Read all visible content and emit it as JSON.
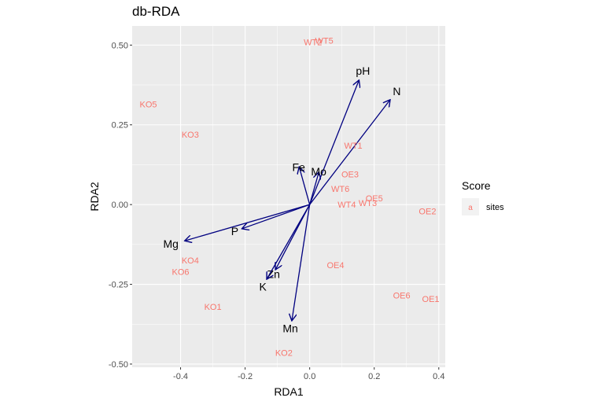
{
  "chart_data": {
    "type": "scatter",
    "title": "db-RDA",
    "xlabel": "RDA1",
    "ylabel": "RDA2",
    "xlim": [
      -0.55,
      0.42
    ],
    "ylim": [
      -0.51,
      0.56
    ],
    "x_ticks": [
      -0.4,
      -0.2,
      0.0,
      0.2,
      0.4
    ],
    "x_tick_labels": [
      "-0.4",
      "-0.2",
      "0.0",
      "0.2",
      "0.4"
    ],
    "y_ticks": [
      -0.5,
      -0.25,
      0.0,
      0.25,
      0.5
    ],
    "y_tick_labels": [
      "-0.50",
      "-0.25",
      "0.00",
      "0.25",
      "0.50"
    ],
    "grid": true,
    "background": "#EBEBEB",
    "site_color": "#F8766D",
    "arrow_color": "#000080",
    "sites": [
      {
        "label": "WT2",
        "x": 0.01,
        "y": 0.51
      },
      {
        "label": "WT5",
        "x": 0.045,
        "y": 0.515
      },
      {
        "label": "KO5",
        "x": -0.5,
        "y": 0.315
      },
      {
        "label": "KO3",
        "x": -0.37,
        "y": 0.22
      },
      {
        "label": "WT1",
        "x": 0.135,
        "y": 0.185
      },
      {
        "label": "OE3",
        "x": 0.125,
        "y": 0.095
      },
      {
        "label": "WT6",
        "x": 0.095,
        "y": 0.05
      },
      {
        "label": "OE5",
        "x": 0.2,
        "y": 0.02
      },
      {
        "label": "WT3",
        "x": 0.18,
        "y": 0.005
      },
      {
        "label": "WT4",
        "x": 0.115,
        "y": 0.0
      },
      {
        "label": "OE2",
        "x": 0.365,
        "y": -0.02
      },
      {
        "label": "KO4",
        "x": -0.37,
        "y": -0.175
      },
      {
        "label": "OE4",
        "x": 0.08,
        "y": -0.19
      },
      {
        "label": "KO6",
        "x": -0.4,
        "y": -0.21
      },
      {
        "label": "OE6",
        "x": 0.285,
        "y": -0.285
      },
      {
        "label": "OE1",
        "x": 0.375,
        "y": -0.295
      },
      {
        "label": "KO1",
        "x": -0.3,
        "y": -0.32
      },
      {
        "label": "KO2",
        "x": -0.08,
        "y": -0.465
      }
    ],
    "vectors": [
      {
        "label": "pH",
        "x": 0.152,
        "y": 0.388,
        "label_x": 0.165,
        "label_y": 0.42
      },
      {
        "label": "N",
        "x": 0.248,
        "y": 0.327,
        "label_x": 0.27,
        "label_y": 0.355
      },
      {
        "label": "Fe",
        "x": -0.032,
        "y": 0.116,
        "label_x": -0.034,
        "label_y": 0.118
      },
      {
        "label": "Mo",
        "x": 0.028,
        "y": 0.1,
        "label_x": 0.028,
        "label_y": 0.104
      },
      {
        "label": "Mg",
        "x": -0.385,
        "y": -0.113,
        "label_x": -0.43,
        "label_y": -0.123
      },
      {
        "label": "P",
        "x": -0.208,
        "y": -0.075,
        "label_x": -0.232,
        "label_y": -0.084
      },
      {
        "label": "Zn",
        "x": -0.105,
        "y": -0.202,
        "label_x": -0.112,
        "label_y": -0.218
      },
      {
        "label": "K",
        "x": -0.132,
        "y": -0.232,
        "label_x": -0.145,
        "label_y": -0.257
      },
      {
        "label": "Mn",
        "x": -0.055,
        "y": -0.362,
        "label_x": -0.06,
        "label_y": -0.388
      }
    ]
  },
  "legend": {
    "title": "Score",
    "key_glyph": "a",
    "item_label": "sites"
  }
}
